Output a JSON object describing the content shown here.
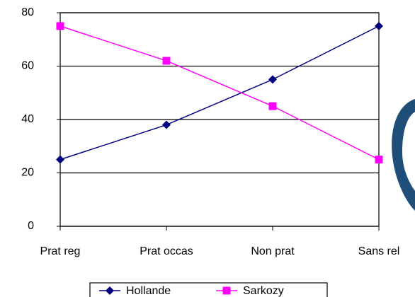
{
  "chart_data": {
    "type": "line",
    "categories": [
      "Prat reg",
      "Prat occas",
      "Non prat",
      "Sans rel"
    ],
    "series": [
      {
        "name": "Hollande",
        "color": "#000080",
        "marker": "diamond",
        "values": [
          25,
          38,
          55,
          75
        ]
      },
      {
        "name": "Sarkozy",
        "color": "#ff00ff",
        "marker": "square",
        "values": [
          75,
          62,
          45,
          25
        ]
      }
    ],
    "ylim": [
      0,
      80
    ],
    "yticks": [
      0,
      20,
      40,
      60,
      80
    ],
    "grid": true,
    "legend": "bottom"
  }
}
